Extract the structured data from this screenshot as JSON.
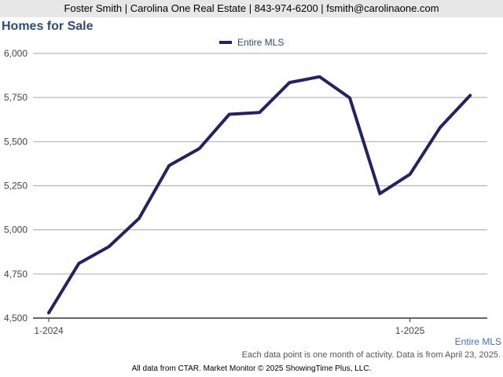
{
  "header": {
    "contact": "Foster Smith | Carolina One Real Estate | 843-974-6200 | fsmith@carolinaone.com"
  },
  "footer": {
    "series_label": "Entire MLS",
    "note": "Each data point is one month of activity. Data is from April 23, 2025.",
    "credits": "All data from CTAR. Market Monitor © 2025 ShowingTime Plus, LLC."
  },
  "colors": {
    "line": "#262262",
    "title": "#2f4b73",
    "grid": "#aaaaaa",
    "axis": "#333333"
  },
  "chart_data": {
    "type": "line",
    "title": "Homes for Sale",
    "xlabel": "",
    "ylabel": "",
    "x": [
      "2024-01",
      "2024-02",
      "2024-03",
      "2024-04",
      "2024-05",
      "2024-06",
      "2024-07",
      "2024-08",
      "2024-09",
      "2024-10",
      "2024-11",
      "2024-12",
      "2025-01",
      "2025-02",
      "2025-03"
    ],
    "series": [
      {
        "name": "Entire MLS",
        "values": [
          4530,
          4810,
          4905,
          5065,
          5365,
          5460,
          5655,
          5665,
          5835,
          5868,
          5748,
          5205,
          5315,
          5580,
          5762
        ]
      }
    ],
    "x_tick_labels": [
      {
        "label": "1-2024",
        "index": 0
      },
      {
        "label": "1-2025",
        "index": 12
      }
    ],
    "y_ticks": [
      "4,500",
      "4,750",
      "5,000",
      "5,250",
      "5,500",
      "5,750",
      "6,000"
    ],
    "y_tick_values": [
      4500,
      4750,
      5000,
      5250,
      5500,
      5750,
      6000
    ],
    "ylim": [
      4500,
      6000
    ],
    "grid": true,
    "legend_position": "top-center"
  }
}
